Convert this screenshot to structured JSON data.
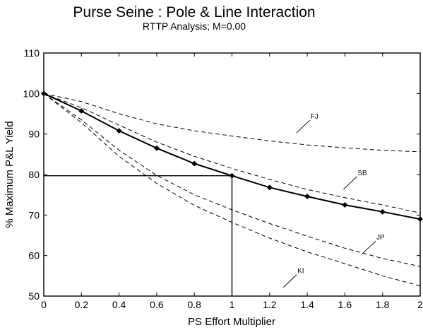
{
  "chart_data": {
    "type": "line",
    "title": "Purse Seine : Pole & Line Interaction",
    "subtitle": "RTTP Analysis; M=0.00",
    "xlabel": "PS Effort Multiplier",
    "ylabel": "% Maximum P&L Yield",
    "xlim": [
      0,
      2
    ],
    "ylim": [
      50,
      110
    ],
    "xticks": [
      0,
      0.2,
      0.4,
      0.6,
      0.8,
      1,
      1.2,
      1.4,
      1.6,
      1.8,
      2
    ],
    "xtick_labels": [
      "0",
      "0.2",
      "0.4",
      "0.6",
      "0.8",
      "1",
      "1.2",
      "1.4",
      "1.6",
      "1.8",
      "2"
    ],
    "yticks": [
      50,
      60,
      70,
      80,
      90,
      100,
      110
    ],
    "ytick_labels": [
      "50",
      "60",
      "70",
      "80",
      "90",
      "100",
      "110"
    ],
    "grid": false,
    "x": [
      0,
      0.2,
      0.4,
      0.6,
      0.8,
      1.0,
      1.2,
      1.4,
      1.6,
      1.8,
      2.0
    ],
    "series": [
      {
        "name": "",
        "style": "solid-markers",
        "values": [
          100,
          95.7,
          90.8,
          86.5,
          82.7,
          79.7,
          76.8,
          74.6,
          72.5,
          70.8,
          69.0
        ]
      },
      {
        "name": "FJ",
        "style": "dashed",
        "values": [
          100,
          98.0,
          95.0,
          92.5,
          90.8,
          89.5,
          88.3,
          87.3,
          86.6,
          86.0,
          85.6
        ]
      },
      {
        "name": "SB",
        "style": "dashed",
        "values": [
          100,
          96.5,
          92.2,
          88.0,
          84.5,
          81.5,
          78.8,
          76.3,
          74.3,
          72.5,
          70.5
        ]
      },
      {
        "name": "JP",
        "style": "dashed",
        "values": [
          100,
          93.5,
          86.0,
          79.8,
          75.0,
          71.3,
          67.9,
          64.8,
          61.8,
          59.3,
          57.3
        ]
      },
      {
        "name": "KI",
        "style": "dashed",
        "values": [
          100,
          92.8,
          84.5,
          77.8,
          72.4,
          68.2,
          64.3,
          60.9,
          58.0,
          55.0,
          52.5
        ]
      }
    ],
    "reference_lines": {
      "x": 1.0,
      "y": 79.7
    },
    "curve_labels": [
      {
        "text": "FJ",
        "x": 1.35,
        "y": 93.4
      },
      {
        "text": "SB",
        "x": 1.6,
        "y": 79.5
      },
      {
        "text": "JP",
        "x": 1.7,
        "y": 63.6
      },
      {
        "text": "KI",
        "x": 1.28,
        "y": 55.3
      }
    ],
    "colors": {
      "line": "#000000",
      "background": "#ffffff"
    }
  }
}
